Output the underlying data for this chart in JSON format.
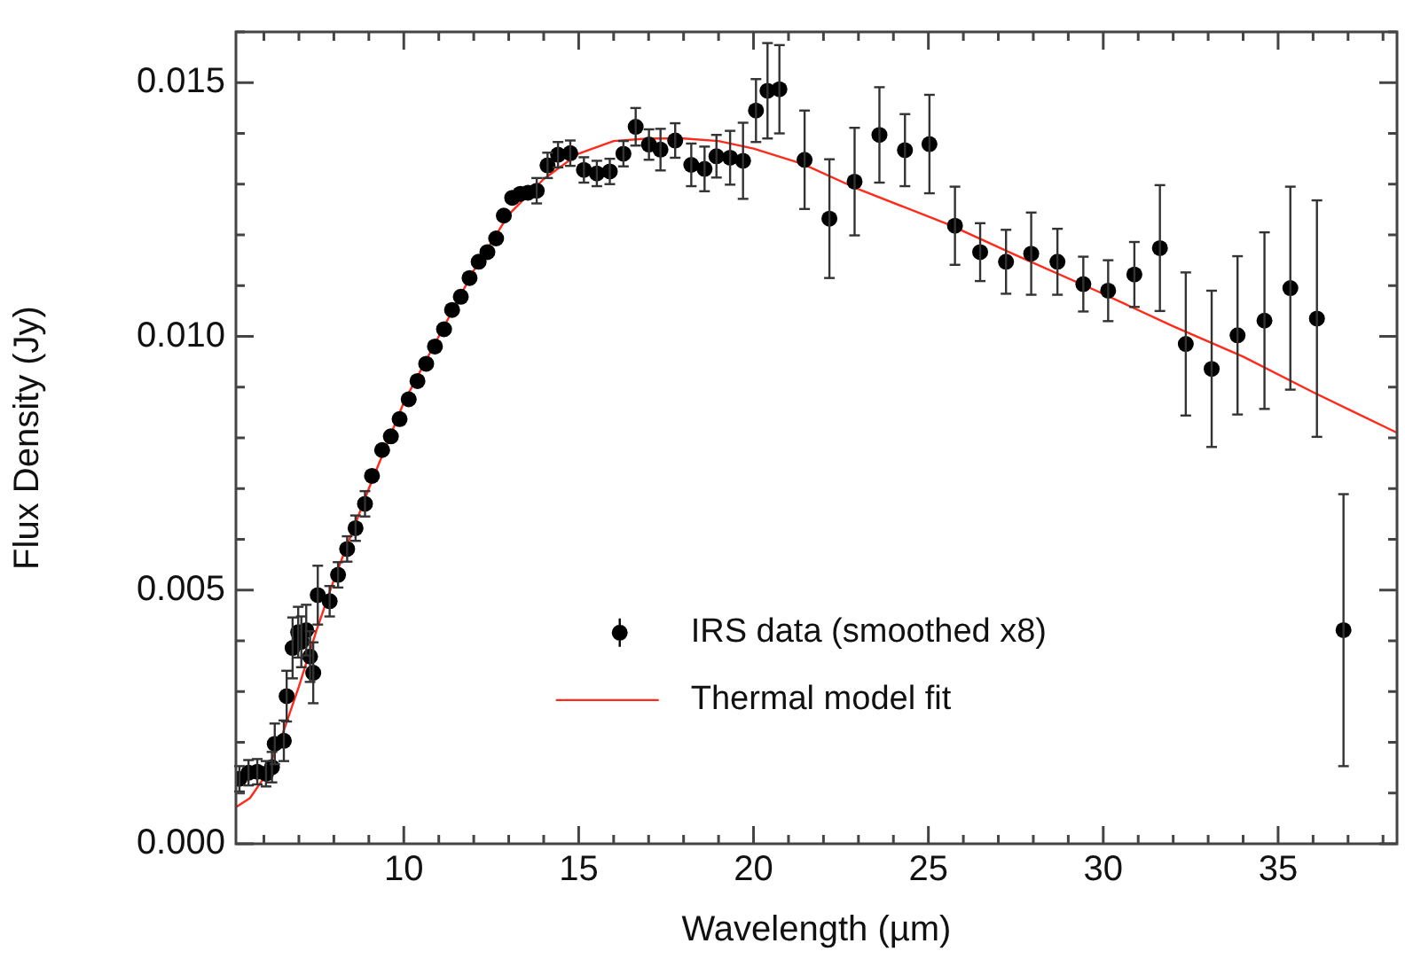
{
  "chart_data": {
    "type": "scatter",
    "xlabel": "Wavelength (µm)",
    "ylabel": "Flux Density (Jy)",
    "xlim": [
      5.2,
      38.4
    ],
    "xticks": [
      {
        "value": 6,
        "label": null
      },
      {
        "value": 7,
        "label": null
      },
      {
        "value": 8,
        "label": null
      },
      {
        "value": 9,
        "label": null
      },
      10,
      {
        "value": 11,
        "label": null
      },
      {
        "value": 12,
        "label": null
      },
      {
        "value": 13,
        "label": null
      },
      {
        "value": 14,
        "label": null
      },
      15,
      {
        "value": 16,
        "label": null
      },
      {
        "value": 17,
        "label": null
      },
      {
        "value": 18,
        "label": null
      },
      {
        "value": 19,
        "label": null
      },
      20,
      {
        "value": 21,
        "label": null
      },
      {
        "value": 22,
        "label": null
      },
      {
        "value": 23,
        "label": null
      },
      {
        "value": 24,
        "label": null
      },
      25,
      {
        "value": 26,
        "label": null
      },
      {
        "value": 27,
        "label": null
      },
      {
        "value": 28,
        "label": null
      },
      {
        "value": 29,
        "label": null
      },
      30,
      {
        "value": 31,
        "label": null
      },
      {
        "value": 32,
        "label": null
      },
      {
        "value": 33,
        "label": null
      },
      {
        "value": 34,
        "label": null
      },
      35,
      {
        "value": 36,
        "label": null
      },
      {
        "value": 37,
        "label": null
      },
      {
        "value": 38,
        "label": null
      }
    ],
    "ylim": [
      0,
      0.016
    ],
    "yticks": [
      {
        "value": 0,
        "label": "0.000"
      },
      {
        "value": 0.001,
        "label": null
      },
      {
        "value": 0.002,
        "label": null
      },
      {
        "value": 0.003,
        "label": null
      },
      {
        "value": 0.004,
        "label": null
      },
      0.005,
      {
        "value": 0.006,
        "label": null
      },
      {
        "value": 0.007,
        "label": null
      },
      {
        "value": 0.008,
        "label": null
      },
      {
        "value": 0.009,
        "label": null
      },
      {
        "value": 0.01,
        "label": "0.010"
      },
      {
        "value": 0.011,
        "label": null
      },
      {
        "value": 0.012,
        "label": null
      },
      {
        "value": 0.013,
        "label": null
      },
      {
        "value": 0.014,
        "label": null
      },
      0.015,
      {
        "value": 0.016,
        "label": null
      }
    ],
    "grid": false,
    "legend": "bottom",
    "series": [
      {
        "name": "IRS data (smoothed x8)",
        "type": "scatter",
        "color": "#000000",
        "marker": "circle",
        "x": [
          5.3,
          5.56,
          5.81,
          6.06,
          6.23,
          6.31,
          6.57,
          6.65,
          6.82,
          6.98,
          7.07,
          7.21,
          7.32,
          7.41,
          7.54,
          7.88,
          8.12,
          8.38,
          8.62,
          8.89,
          9.09,
          9.38,
          9.63,
          9.88,
          10.14,
          10.39,
          10.64,
          10.89,
          11.15,
          11.38,
          11.63,
          11.88,
          12.14,
          12.39,
          12.64,
          12.86,
          13.1,
          13.33,
          13.55,
          13.8,
          14.11,
          14.41,
          14.76,
          15.15,
          15.52,
          15.89,
          16.28,
          16.63,
          17.01,
          17.34,
          17.76,
          18.22,
          18.6,
          18.94,
          19.33,
          19.7,
          20.07,
          20.4,
          20.74,
          21.46,
          22.17,
          22.89,
          23.6,
          24.33,
          25.03,
          25.76,
          26.48,
          27.22,
          27.94,
          28.69,
          29.43,
          30.14,
          30.89,
          31.62,
          32.36,
          33.1,
          33.84,
          34.61,
          35.35,
          36.11,
          36.87
        ],
        "values": [
          0.00128,
          0.0014,
          0.00142,
          0.00138,
          0.00151,
          0.00197,
          0.00203,
          0.00291,
          0.00386,
          0.00417,
          0.00398,
          0.00421,
          0.00369,
          0.00337,
          0.0049,
          0.00478,
          0.0053,
          0.00581,
          0.00622,
          0.0067,
          0.00725,
          0.00776,
          0.00803,
          0.00837,
          0.00876,
          0.00912,
          0.00946,
          0.0098,
          0.01014,
          0.01052,
          0.01078,
          0.01115,
          0.01147,
          0.01166,
          0.01193,
          0.01238,
          0.01273,
          0.01281,
          0.01283,
          0.01287,
          0.01337,
          0.01358,
          0.01361,
          0.01328,
          0.01321,
          0.01325,
          0.0136,
          0.01413,
          0.01378,
          0.01368,
          0.01386,
          0.01338,
          0.0133,
          0.01355,
          0.01352,
          0.01346,
          0.01445,
          0.01484,
          0.01487,
          0.01348,
          0.01232,
          0.01305,
          0.01397,
          0.01367,
          0.01379,
          0.01218,
          0.01166,
          0.01147,
          0.01163,
          0.01147,
          0.01103,
          0.0109,
          0.01122,
          0.01174,
          0.00985,
          0.00936,
          0.01002,
          0.01031,
          0.01095,
          0.01035,
          0.00421
        ],
        "errors": [
          0.00025,
          0.00025,
          0.00025,
          0.00025,
          0.0003,
          0.0004,
          0.0004,
          0.0005,
          0.0006,
          0.0005,
          0.0005,
          0.0005,
          0.0005,
          0.0006,
          0.00058,
          0.0003,
          0.00025,
          0.00025,
          0.00025,
          0.00025,
          null,
          null,
          null,
          null,
          null,
          null,
          null,
          null,
          null,
          null,
          null,
          null,
          null,
          null,
          null,
          null,
          null,
          null,
          null,
          0.00025,
          0.00025,
          0.00025,
          0.00025,
          0.00025,
          0.00025,
          0.00025,
          0.00025,
          0.00037,
          0.0003,
          0.00041,
          0.00034,
          0.00042,
          0.00044,
          0.00042,
          0.00053,
          0.00075,
          0.00062,
          0.00094,
          0.00087,
          0.00097,
          0.00117,
          0.00106,
          0.00094,
          0.00071,
          0.00097,
          0.00077,
          0.00057,
          0.00063,
          0.00081,
          0.00065,
          0.00054,
          0.0006,
          0.00064,
          0.00124,
          0.00141,
          0.00154,
          0.00156,
          0.00174,
          0.002,
          0.00233,
          0.00268
        ]
      },
      {
        "name": "Thermal model fit",
        "type": "line",
        "color": "#ff2a1a",
        "marker": "none",
        "line_style": "solid",
        "x": [
          5.2,
          5.6,
          6,
          6.5,
          7,
          7.5,
          8,
          9,
          10,
          11,
          12,
          13,
          14,
          15,
          16,
          17,
          18,
          19,
          20,
          21.4,
          23,
          25.6,
          27.5,
          29.8,
          32,
          34,
          36,
          38.4
        ],
        "values": [
          0.00072,
          0.0009,
          0.0013,
          0.0021,
          0.0031,
          0.0042,
          0.0052,
          0.007,
          0.0087,
          0.01,
          0.0113,
          0.0124,
          0.0131,
          0.0136,
          0.01385,
          0.0139,
          0.0139,
          0.01385,
          0.0137,
          0.0134,
          0.0129,
          0.0122,
          0.0116,
          0.0109,
          0.0102,
          0.0096,
          0.0089,
          0.0081
        ]
      }
    ]
  }
}
